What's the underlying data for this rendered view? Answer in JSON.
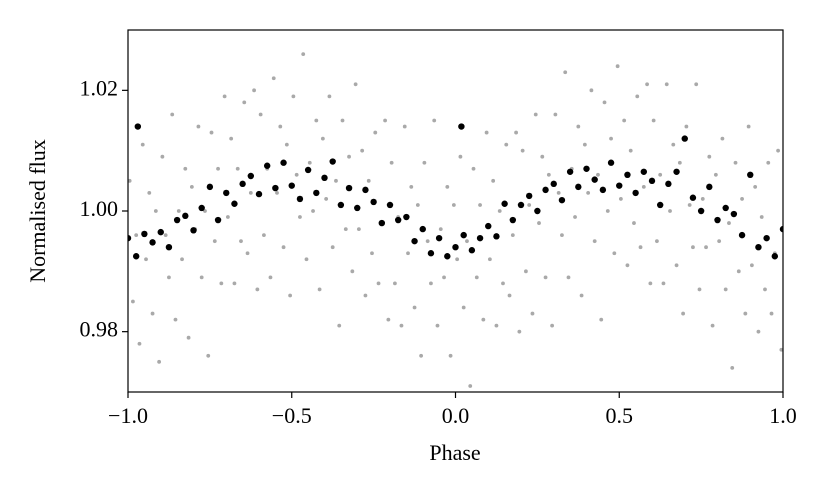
{
  "chart_data": {
    "type": "scatter",
    "x_label": "Phase",
    "y_label": "Normalised flux",
    "xlim": [
      -1,
      1
    ],
    "ylim": [
      0.97,
      1.03
    ],
    "xticks": [
      {
        "value": -1,
        "label": "−1.0"
      },
      {
        "value": -0.5,
        "label": "−0.5"
      },
      {
        "value": 0,
        "label": "0.0"
      },
      {
        "value": 0.5,
        "label": "0.5"
      },
      {
        "value": 1,
        "label": "1.0"
      }
    ],
    "yticks": [
      0.98,
      {
        "value": 1,
        "label": "1.00"
      },
      1.02
    ],
    "series": [
      {
        "color": "#a9a9a9",
        "radius": 1.9,
        "x": [
          -0.995,
          -0.985,
          -0.975,
          -0.965,
          -0.955,
          -0.945,
          -0.935,
          -0.925,
          -0.915,
          -0.905,
          -0.895,
          -0.885,
          -0.875,
          -0.865,
          -0.855,
          -0.845,
          -0.835,
          -0.825,
          -0.815,
          -0.805,
          -0.795,
          -0.785,
          -0.775,
          -0.765,
          -0.755,
          -0.745,
          -0.735,
          -0.725,
          -0.715,
          -0.705,
          -0.695,
          -0.685,
          -0.675,
          -0.665,
          -0.655,
          -0.645,
          -0.635,
          -0.625,
          -0.615,
          -0.605,
          -0.595,
          -0.585,
          -0.575,
          -0.565,
          -0.555,
          -0.545,
          -0.535,
          -0.525,
          -0.515,
          -0.505,
          -0.495,
          -0.485,
          -0.475,
          -0.465,
          -0.455,
          -0.445,
          -0.435,
          -0.425,
          -0.415,
          -0.405,
          -0.395,
          -0.385,
          -0.375,
          -0.365,
          -0.355,
          -0.345,
          -0.335,
          -0.325,
          -0.315,
          -0.305,
          -0.295,
          -0.285,
          -0.275,
          -0.265,
          -0.255,
          -0.245,
          -0.235,
          -0.225,
          -0.215,
          -0.205,
          -0.195,
          -0.185,
          -0.175,
          -0.165,
          -0.155,
          -0.145,
          -0.135,
          -0.125,
          -0.115,
          -0.105,
          -0.095,
          -0.085,
          -0.075,
          -0.065,
          -0.055,
          -0.045,
          -0.035,
          -0.025,
          -0.015,
          -0.005,
          0.005,
          0.015,
          0.025,
          0.035,
          0.045,
          0.055,
          0.065,
          0.075,
          0.085,
          0.095,
          0.105,
          0.115,
          0.125,
          0.135,
          0.145,
          0.155,
          0.165,
          0.175,
          0.185,
          0.195,
          0.205,
          0.215,
          0.225,
          0.235,
          0.245,
          0.255,
          0.265,
          0.275,
          0.285,
          0.295,
          0.305,
          0.315,
          0.325,
          0.335,
          0.345,
          0.355,
          0.365,
          0.375,
          0.385,
          0.395,
          0.405,
          0.415,
          0.425,
          0.435,
          0.445,
          0.455,
          0.465,
          0.475,
          0.485,
          0.495,
          0.505,
          0.515,
          0.525,
          0.535,
          0.545,
          0.555,
          0.565,
          0.575,
          0.585,
          0.595,
          0.605,
          0.615,
          0.625,
          0.635,
          0.645,
          0.655,
          0.665,
          0.675,
          0.685,
          0.695,
          0.705,
          0.715,
          0.725,
          0.735,
          0.745,
          0.755,
          0.765,
          0.775,
          0.785,
          0.795,
          0.805,
          0.815,
          0.825,
          0.835,
          0.845,
          0.855,
          0.865,
          0.875,
          0.885,
          0.895,
          0.905,
          0.915,
          0.925,
          0.935,
          0.945,
          0.955,
          0.965,
          0.975,
          0.985,
          0.995
        ],
        "values": [
          1.005,
          0.985,
          0.996,
          0.978,
          1.011,
          0.992,
          1.003,
          0.983,
          1.0,
          0.975,
          1.009,
          0.996,
          0.989,
          1.016,
          0.982,
          1.0,
          0.992,
          1.007,
          0.979,
          1.004,
          0.997,
          1.014,
          0.989,
          1.0,
          0.976,
          1.013,
          0.995,
          1.007,
          0.988,
          1.019,
          0.999,
          1.012,
          0.988,
          1.007,
          0.995,
          1.018,
          0.993,
          1.003,
          1.02,
          0.987,
          1.016,
          0.996,
          1.007,
          0.989,
          1.022,
          1.003,
          1.014,
          0.994,
          1.011,
          0.986,
          1.019,
          1.006,
          0.999,
          1.026,
          0.992,
          1.008,
          1.0,
          1.015,
          0.987,
          1.012,
          1.002,
          1.019,
          0.994,
          1.005,
          0.981,
          1.015,
          0.997,
          1.009,
          0.99,
          1.021,
          0.997,
          1.01,
          0.986,
          1.005,
          0.993,
          1.013,
          0.988,
          0.998,
          1.015,
          0.982,
          1.008,
          0.988,
          0.999,
          0.981,
          1.014,
          0.993,
          1.004,
          0.984,
          1.001,
          0.976,
          1.008,
          0.995,
          0.988,
          1.015,
          0.981,
          0.997,
          0.989,
          1.004,
          0.976,
          1.001,
          0.992,
          1.009,
          0.984,
          0.995,
          0.971,
          1.007,
          0.989,
          1.001,
          0.982,
          1.013,
          0.992,
          1.005,
          0.981,
          1.0,
          0.988,
          1.011,
          0.986,
          0.996,
          1.013,
          0.98,
          1.01,
          0.99,
          1.001,
          0.983,
          1.016,
          0.998,
          1.009,
          0.989,
          1.006,
          0.981,
          1.016,
          1.003,
          0.996,
          1.023,
          0.989,
          1.007,
          0.999,
          1.014,
          0.986,
          1.011,
          1.003,
          1.02,
          0.995,
          1.006,
          0.982,
          1.018,
          1.0,
          1.012,
          0.993,
          1.024,
          1.002,
          1.015,
          0.991,
          1.01,
          0.998,
          1.019,
          0.994,
          1.004,
          1.021,
          0.988,
          1.015,
          0.995,
          1.006,
          0.988,
          1.021,
          1.0,
          1.011,
          0.991,
          1.008,
          0.983,
          1.014,
          1.001,
          0.994,
          1.021,
          0.987,
          1.002,
          0.994,
          1.009,
          0.981,
          1.006,
          0.995,
          1.012,
          0.987,
          0.998,
          0.974,
          1.008,
          0.99,
          1.002,
          0.983,
          1.014,
          0.991,
          1.004,
          0.98,
          0.999,
          0.987,
          1.008,
          0.983,
          0.993,
          1.01,
          0.977
        ]
      },
      {
        "color": "#000000",
        "radius": 3.2,
        "x": [
          -1,
          -0.975,
          -0.95,
          -0.925,
          -0.9,
          -0.875,
          -0.85,
          -0.825,
          -0.8,
          -0.775,
          -0.75,
          -0.725,
          -0.7,
          -0.675,
          -0.65,
          -0.625,
          -0.6,
          -0.575,
          -0.55,
          -0.525,
          -0.5,
          -0.475,
          -0.45,
          -0.425,
          -0.4,
          -0.375,
          -0.35,
          -0.325,
          -0.3,
          -0.275,
          -0.25,
          -0.225,
          -0.2,
          -0.175,
          -0.15,
          -0.125,
          -0.1,
          -0.075,
          -0.05,
          -0.025,
          0,
          0.025,
          0.05,
          0.075,
          0.1,
          0.125,
          0.15,
          0.175,
          0.2,
          0.225,
          0.25,
          0.275,
          0.3,
          0.325,
          0.35,
          0.375,
          0.4,
          0.425,
          0.45,
          0.475,
          0.5,
          0.525,
          0.55,
          0.575,
          0.6,
          0.625,
          0.65,
          0.675,
          0.7,
          0.725,
          0.75,
          0.775,
          0.8,
          0.825,
          0.85,
          0.875,
          0.9,
          0.925,
          0.95,
          0.975,
          1,
          -0.97,
          0.018
        ],
        "values": [
          0.9955,
          0.9925,
          0.9962,
          0.9948,
          0.9965,
          0.994,
          0.9985,
          0.9992,
          0.9968,
          1.0005,
          1.004,
          0.9985,
          1.003,
          1.0012,
          1.0045,
          1.0058,
          1.0028,
          1.0075,
          1.0038,
          1.008,
          1.0042,
          1.002,
          1.0068,
          1.003,
          1.0055,
          1.0082,
          1.001,
          1.0038,
          1.0005,
          1.0035,
          1.0015,
          0.998,
          1.001,
          0.9985,
          0.999,
          0.995,
          0.997,
          0.993,
          0.9955,
          0.9925,
          0.994,
          0.996,
          0.9935,
          0.9955,
          0.9975,
          0.9958,
          1.0012,
          0.9985,
          1.001,
          1.0025,
          1.0,
          1.0035,
          1.0045,
          1.0018,
          1.0065,
          1.004,
          1.007,
          1.0052,
          1.0035,
          1.008,
          1.0042,
          1.006,
          1.003,
          1.0065,
          1.005,
          1.001,
          1.0045,
          1.0065,
          1.012,
          1.0022,
          1.0,
          1.004,
          0.9985,
          1.0005,
          0.9995,
          0.996,
          1.006,
          0.994,
          0.9955,
          0.9925,
          0.997,
          1.014,
          1.014
        ]
      }
    ]
  }
}
